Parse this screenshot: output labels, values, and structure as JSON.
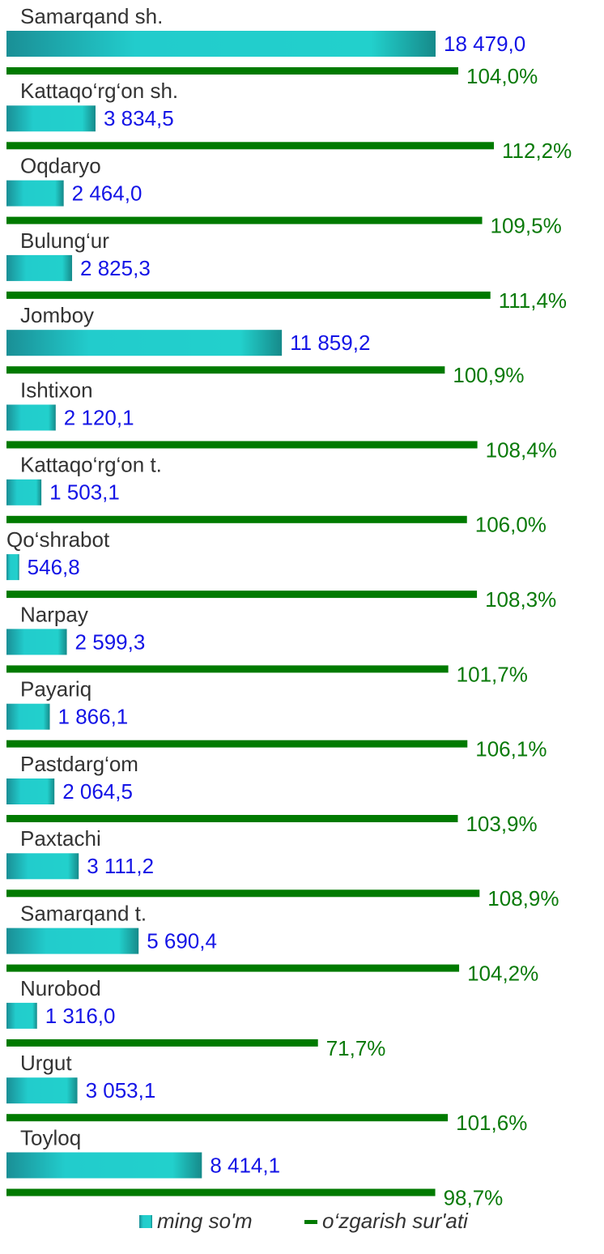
{
  "chart_data": {
    "type": "bar",
    "categories": [
      "Samarqand sh.",
      "Kattaqo‘rg‘on sh.",
      "Oqdaryo",
      "Bulung‘ur",
      "Jomboy",
      "Ishtixon",
      "Kattaqo‘rg‘on t.",
      "Qo‘shrabot",
      "Narpay",
      "Payariq",
      "Pastdarg‘om",
      "Paxtachi",
      "Samarqand t.",
      "Nurobod",
      "Urgut",
      "Toyloq"
    ],
    "series": [
      {
        "name": "ming so'm",
        "color": "#20c8c4",
        "values": [
          18479.0,
          3834.5,
          2464.0,
          2825.3,
          11859.2,
          2120.1,
          1503.1,
          546.8,
          2599.3,
          1866.1,
          2064.5,
          3111.2,
          5690.4,
          1316.0,
          3053.1,
          8414.1
        ],
        "value_labels": [
          "18 479,0",
          "3 834,5",
          "2 464,0",
          "2 825,3",
          "11 859,2",
          "2 120,1",
          "1 503,1",
          "546,8",
          "2 599,3",
          "1 866,1",
          "2 064,5",
          "3 111,2",
          "5 690,4",
          "1 316,0",
          "3 053,1",
          "8 414,1"
        ]
      },
      {
        "name": "o‘zgarish sur'ati",
        "color": "#007a00",
        "values": [
          104.0,
          112.2,
          109.5,
          111.4,
          100.9,
          108.4,
          106.0,
          108.3,
          101.7,
          106.1,
          103.9,
          108.9,
          104.2,
          71.7,
          101.6,
          98.7
        ],
        "value_labels": [
          "104,0%",
          "112,2%",
          "109,5%",
          "111,4%",
          "100,9%",
          "108,4%",
          "106,0%",
          "108,3%",
          "101,7%",
          "106,1%",
          "103,9%",
          "108,9%",
          "104,2%",
          "71,7%",
          "101,6%",
          "98,7%"
        ]
      }
    ]
  }
}
